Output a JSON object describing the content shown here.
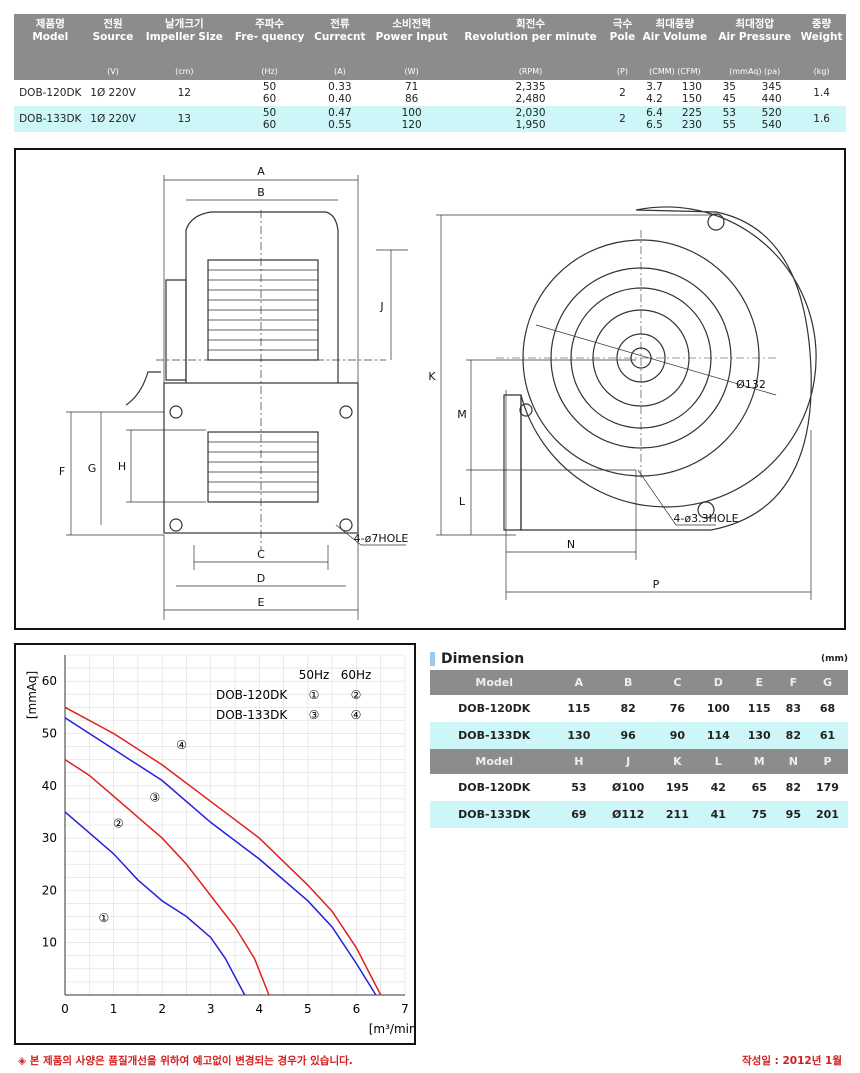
{
  "spec_table": {
    "headers": [
      {
        "ko": "제품명",
        "en": "Model",
        "unit": ""
      },
      {
        "ko": "전원",
        "en": "Source",
        "unit": "(V)"
      },
      {
        "ko": "날개크기",
        "en": "Impeller Size",
        "unit": "(cm)"
      },
      {
        "ko": "주파수",
        "en": "Fre- quency",
        "unit": "(Hz)"
      },
      {
        "ko": "전류",
        "en": "Currecnt",
        "unit": "(A)"
      },
      {
        "ko": "소비전력",
        "en": "Power Input",
        "unit": "(W)"
      },
      {
        "ko": "회전수",
        "en": "Revolution per minute",
        "unit": "(RPM)"
      },
      {
        "ko": "극수",
        "en": "Pole",
        "unit": "(P)"
      },
      {
        "ko": "최대풍량",
        "en": "Air Volume",
        "unit": "(CMM)      (CFM)"
      },
      {
        "ko": "최대정압",
        "en": "Air Pressure",
        "unit": "(mmAq)      (pa)"
      },
      {
        "ko": "중량",
        "en": "Weight",
        "unit": "(kg)"
      }
    ],
    "rows": [
      {
        "model": "DOB-120DK",
        "source": "1Ø 220V",
        "size": "12",
        "freq": "50\n60",
        "current": "0.33\n0.40",
        "power": "71\n86",
        "rpm": "2,335\n2,480",
        "pole": "2",
        "cmm": "3.7\n4.2",
        "cfm": "130\n150",
        "mmaq": "35\n45",
        "pa": "345\n440",
        "weight": "1.4"
      },
      {
        "model": "DOB-133DK",
        "source": "1Ø 220V",
        "size": "13",
        "freq": "50\n60",
        "current": "0.47\n0.55",
        "power": "100\n120",
        "rpm": "2,030\n1,950",
        "pole": "2",
        "cmm": "6.4\n6.5",
        "cfm": "225\n230",
        "mmaq": "53\n55",
        "pa": "520\n540",
        "weight": "1.6"
      }
    ]
  },
  "drawing": {
    "labels": {
      "A": "A",
      "B": "B",
      "C": "C",
      "D": "D",
      "E": "E",
      "F": "F",
      "G": "G",
      "H": "H",
      "J": "J",
      "K": "K",
      "L": "L",
      "M": "M",
      "N": "N",
      "P": "P"
    },
    "hole_front": "4-ø7HOLE",
    "hole_side": "4-ø3.3HOLE",
    "diameter": "Ø132"
  },
  "chart_data": {
    "type": "line",
    "xlabel": "[m³/min]",
    "ylabel": "[mmAq]",
    "xlim": [
      0,
      7
    ],
    "ylim": [
      0,
      65
    ],
    "xticks": [
      0,
      1,
      2,
      3,
      4,
      5,
      6,
      7
    ],
    "yticks": [
      10,
      20,
      30,
      40,
      50,
      60
    ],
    "grid": true,
    "legend": {
      "col_headers": [
        "50Hz",
        "60Hz"
      ],
      "rows": [
        {
          "model": "DOB-120DK",
          "marks": [
            "①",
            "②"
          ]
        },
        {
          "model": "DOB-133DK",
          "marks": [
            "③",
            "④"
          ]
        }
      ]
    },
    "colors": {
      "50Hz": "#2222dd",
      "60Hz": "#e02020"
    },
    "series": [
      {
        "name": "①",
        "color": "#2222dd",
        "x": [
          0,
          0.5,
          1,
          1.5,
          2,
          2.5,
          3,
          3.3,
          3.7
        ],
        "y": [
          35,
          31,
          27,
          22,
          18,
          15,
          11,
          7,
          0
        ]
      },
      {
        "name": "②",
        "color": "#e02020",
        "x": [
          0,
          0.5,
          1,
          1.5,
          2,
          2.5,
          3,
          3.5,
          3.9,
          4.2
        ],
        "y": [
          45,
          42,
          38,
          34,
          30,
          25,
          19,
          13,
          7,
          0
        ]
      },
      {
        "name": "③",
        "color": "#2222dd",
        "x": [
          0,
          1,
          2,
          3,
          4,
          5,
          5.5,
          6,
          6.4
        ],
        "y": [
          53,
          47,
          41,
          33,
          26,
          18,
          13,
          6,
          0
        ]
      },
      {
        "name": "④",
        "color": "#e02020",
        "x": [
          0,
          1,
          2,
          3,
          4,
          5,
          5.5,
          6,
          6.5
        ],
        "y": [
          55,
          50,
          44,
          37,
          30,
          21,
          16,
          9,
          0
        ]
      }
    ]
  },
  "dimension": {
    "title": "Dimension",
    "unit": "(mm)",
    "tables": [
      {
        "headers": [
          "Model",
          "A",
          "B",
          "C",
          "D",
          "E",
          "F",
          "G"
        ],
        "rows": [
          [
            "DOB-120DK",
            "115",
            "82",
            "76",
            "100",
            "115",
            "83",
            "68"
          ],
          [
            "DOB-133DK",
            "130",
            "96",
            "90",
            "114",
            "130",
            "82",
            "61"
          ]
        ]
      },
      {
        "headers": [
          "Model",
          "H",
          "J",
          "K",
          "L",
          "M",
          "N",
          "P"
        ],
        "rows": [
          [
            "DOB-120DK",
            "53",
            "Ø100",
            "195",
            "42",
            "65",
            "82",
            "179"
          ],
          [
            "DOB-133DK",
            "69",
            "Ø112",
            "211",
            "41",
            "75",
            "95",
            "201"
          ]
        ]
      }
    ]
  },
  "footer": {
    "notice": "◈ 본 제품의 사양은 품질개선을 위하여 예고없이 변경되는 경우가 있습니다.",
    "date": "작성일 : 2012년 1월"
  }
}
